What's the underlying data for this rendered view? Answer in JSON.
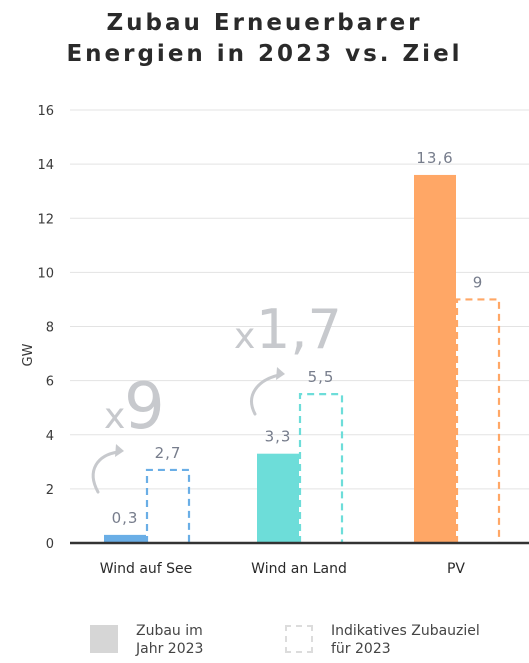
{
  "title": [
    "Zubau Erneuerbarer",
    "Energien in 2023 vs. Ziel"
  ],
  "chart_data": {
    "type": "bar",
    "categories": [
      "Wind auf See",
      "Wind an Land",
      "PV"
    ],
    "ylabel": "GW",
    "ylim": [
      0,
      16
    ],
    "yticks": [
      0,
      2,
      4,
      6,
      8,
      10,
      12,
      14,
      16
    ],
    "grid": true,
    "series": [
      {
        "name": "Zubau im Jahr 2023",
        "values": [
          0.3,
          3.3,
          13.6
        ],
        "labels": [
          "0,3",
          "3,3",
          "13,6"
        ],
        "style": "filled"
      },
      {
        "name": "Indikatives Zubauziel für 2023",
        "values": [
          2.7,
          5.5,
          9
        ],
        "labels": [
          "2,7",
          "5,5",
          "9"
        ],
        "style": "dashed"
      }
    ],
    "category_colors": [
      "#6aaee6",
      "#6dddd9",
      "#ffa766"
    ],
    "annotations": [
      {
        "category": "Wind auf See",
        "prefix": "x",
        "number": "9"
      },
      {
        "category": "Wind an Land",
        "prefix": "x",
        "number": "1,7"
      }
    ],
    "legend": {
      "placement": "bottom",
      "items": [
        {
          "line1": "Zubau im",
          "line2": "Jahr 2023",
          "swatch": "#d6d6d6"
        },
        {
          "line1": "Indikatives Zubauziel",
          "line2": "für 2023",
          "swatch": "#e2e2e2"
        }
      ]
    }
  }
}
